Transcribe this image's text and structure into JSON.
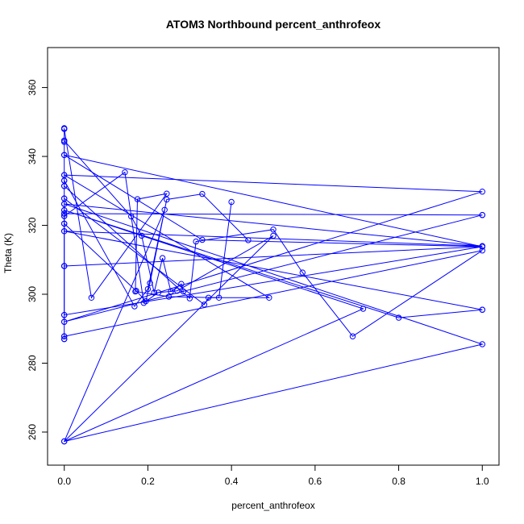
{
  "chart_data": {
    "type": "line",
    "title": "ATOM3 Northbound percent_anthrofeox",
    "xlabel": "percent_anthrofeox",
    "ylabel": "Theta (K)",
    "xlim": [
      -0.04,
      1.04
    ],
    "ylim": [
      250.4,
      371.6
    ],
    "x_ticks": [
      0.0,
      0.2,
      0.4,
      0.6,
      0.8,
      1.0
    ],
    "x_tick_labels": [
      "0.0",
      "0.2",
      "0.4",
      "0.6",
      "0.8",
      "1.0"
    ],
    "y_ticks": [
      260,
      280,
      300,
      320,
      340,
      360
    ],
    "y_tick_labels": [
      "260",
      "280",
      "300",
      "320",
      "340",
      "360"
    ],
    "color": "#0000ff",
    "marker": "open-circle",
    "grid": false,
    "legend": "none",
    "series": [
      {
        "x": [
          0.0,
          0.0,
          0.0,
          0.0,
          0.0,
          0.0,
          0.0,
          0.0,
          0.0,
          0.0,
          0.0,
          0.0,
          0.0,
          0.0,
          0.0,
          0.0,
          0.0,
          0.0,
          0.0,
          0.0,
          0.0,
          0.0
        ],
        "y": [
          287.0,
          287.8,
          292.0,
          294.0,
          308.2,
          318.3,
          320.5,
          322.7,
          323.4,
          324.4,
          326.2,
          327.8,
          331.4,
          333.0,
          334.6,
          340.4,
          344.2,
          344.6,
          348.0,
          348.2,
          308.2,
          287.0
        ]
      },
      {
        "x": [
          0.0,
          0.065,
          0.245,
          0.175,
          0.17,
          0.25,
          0.37,
          0.4
        ],
        "y": [
          348.0,
          299.0,
          329.2,
          327.6,
          300.8,
          299.3,
          299.0,
          326.8
        ]
      },
      {
        "x": [
          0.0,
          0.172,
          0.195,
          0.205,
          0.245,
          0.33,
          0.44
        ],
        "y": [
          320.5,
          301.0,
          298.0,
          303.2,
          327.5,
          329.1,
          315.7
        ]
      },
      {
        "x": [
          0.0,
          0.16,
          0.185,
          0.215,
          0.235,
          0.255,
          0.28,
          0.285
        ],
        "y": [
          344.6,
          322.6,
          317.0,
          300.5,
          310.5,
          300.8,
          303.0,
          300.8
        ]
      },
      {
        "x": [
          0.0,
          0.3,
          0.315,
          0.5,
          0.57,
          0.69,
          1.0,
          0.0
        ],
        "y": [
          331.4,
          298.8,
          315.3,
          318.8,
          306.3,
          287.8,
          312.7,
          287.8
        ]
      },
      {
        "x": [
          0.0,
          0.335,
          0.345,
          0.49,
          0.0,
          1.0,
          0.0,
          1.0
        ],
        "y": [
          327.8,
          297.0,
          299.0,
          299.0,
          334.6,
          329.8,
          292.0,
          323.0
        ]
      },
      {
        "x": [
          0.0,
          0.145,
          0.19,
          0.225,
          0.27,
          0.5,
          0.0,
          0.715,
          0.0,
          0.8,
          1.0
        ],
        "y": [
          322.7,
          335.4,
          297.5,
          300.5,
          301.0,
          317.0,
          257.3,
          295.8,
          324.4,
          293.2,
          295.5
        ]
      },
      {
        "x": [
          0.0,
          0.168,
          0.2,
          0.24,
          0.0,
          1.0,
          0.0,
          1.0,
          0.0,
          1.0
        ],
        "y": [
          333.0,
          296.5,
          301.5,
          324.5,
          257.3,
          285.5,
          326.2,
          314.0,
          318.3,
          295.5
        ]
      },
      {
        "x": [
          0.0,
          1.0,
          0.0,
          0.33,
          1.0,
          0.0,
          0.0,
          1.0
        ],
        "y": [
          308.2,
          313.8,
          340.4,
          315.8,
          313.8,
          294.0,
          323.4,
          323.0
        ]
      }
    ]
  }
}
